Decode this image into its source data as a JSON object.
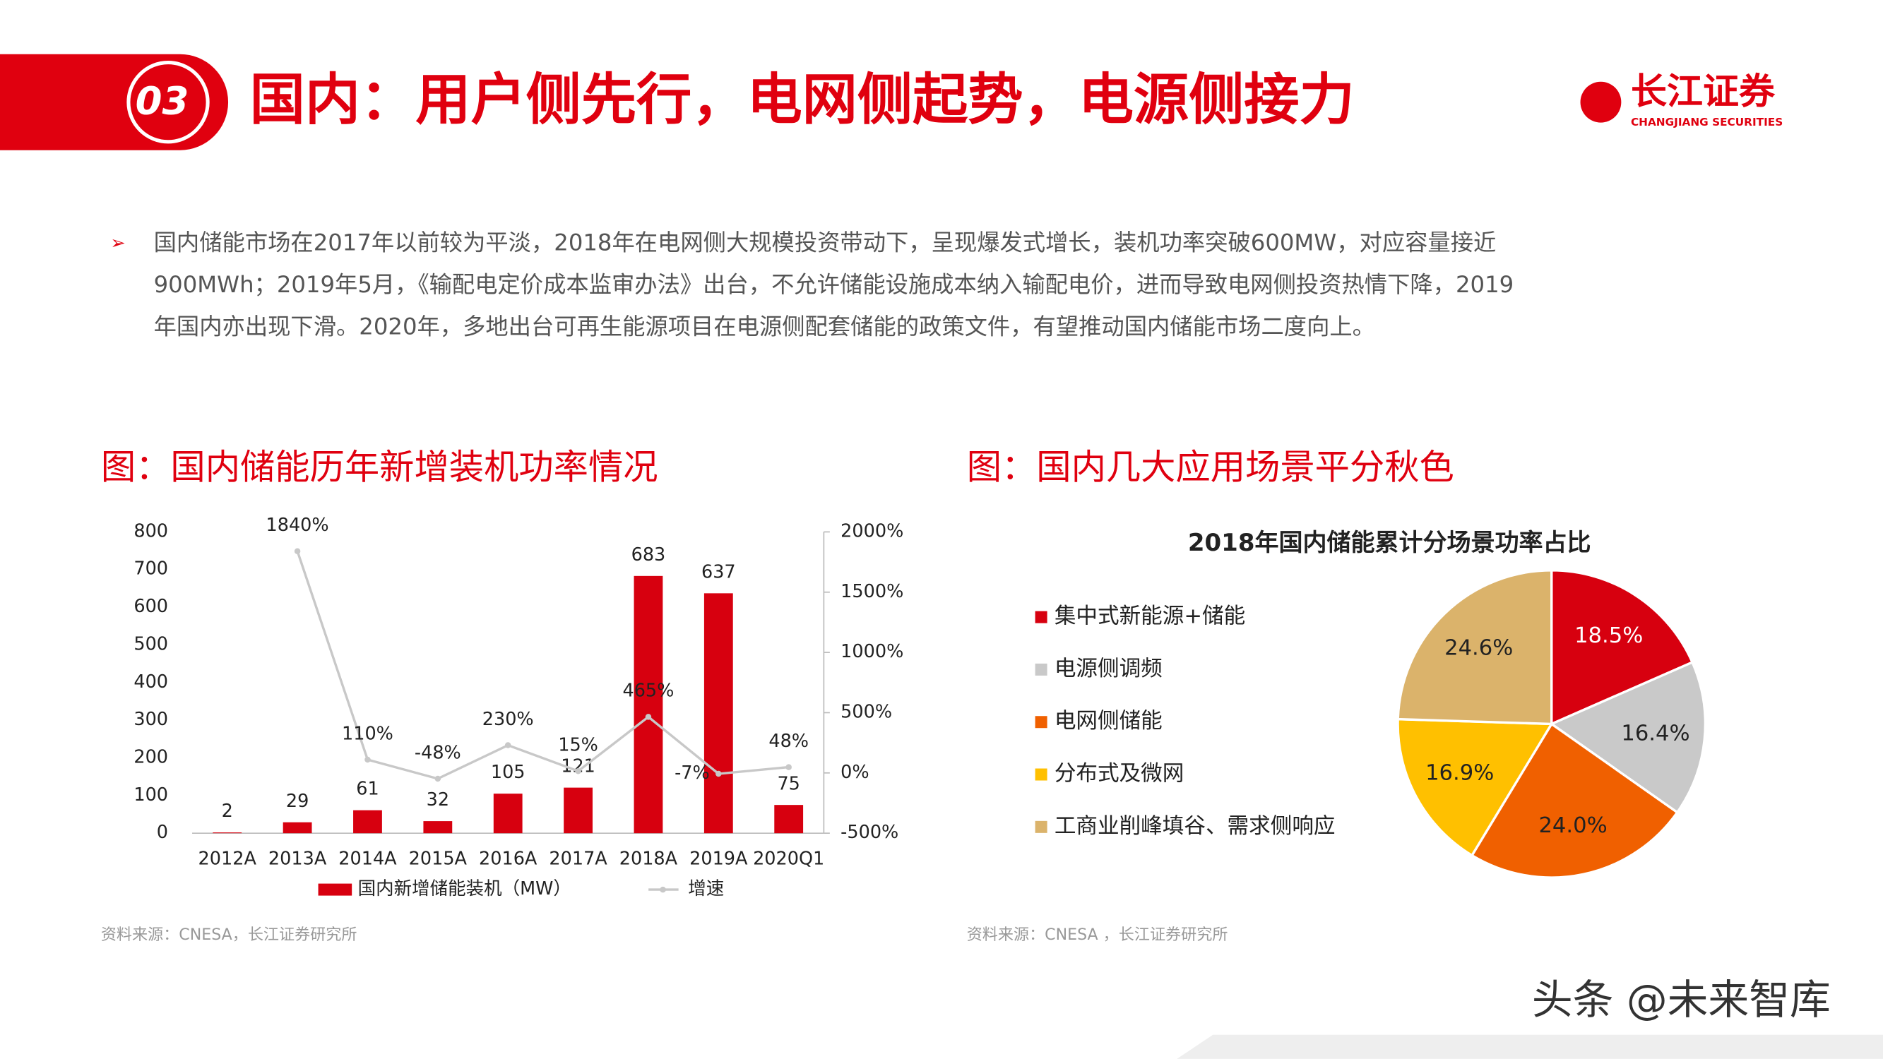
{
  "header": {
    "number": "03",
    "title": "国内：用户侧先行，电网侧起势，电源侧接力",
    "logo": "长江证券",
    "logo_sub": "CHANGJIANG SECURITIES"
  },
  "body": {
    "lines": [
      "国内储能市场在2017年以前较为平淡，2018年在电网侧大规模投资带动下，呈现爆发式增长，装机功率突破600MW，对应容量接近",
      "900MWh；2019年5月，《输配电定价成本监审办法》出台，不允许储能设施成本纳入输配电价，进而导致电网侧投资热情下降，2019",
      "年国内亦出现下滑。2020年，多地出台可再生能源项目在电源侧配套储能的政策文件，有望推动国内储能市场二度向上。"
    ]
  },
  "chart_data": [
    {
      "type": "bar",
      "heading": "图：国内储能历年新增装机功率情况",
      "source": "资料来源：CNESA，长江证券研究所",
      "categories": [
        "2012A",
        "2013A",
        "2014A",
        "2015A",
        "2016A",
        "2017A",
        "2018A",
        "2019A",
        "2020Q1"
      ],
      "series": [
        {
          "name": "国内新增储能装机（MW）",
          "color": "#d7000f",
          "values": [
            2,
            29,
            61,
            32,
            105,
            121,
            683,
            637,
            75
          ]
        },
        {
          "name": "增速",
          "color": "#c8c8c8",
          "axis": "y2",
          "values": [
            null,
            1840,
            110,
            -48,
            230,
            15,
            465,
            -7,
            48
          ],
          "value_labels": [
            null,
            "1840%",
            "110%",
            "-48%",
            "230%",
            "15%",
            "465%",
            "-7%",
            "48%"
          ]
        }
      ],
      "ylim": [
        0,
        800
      ],
      "yticks": [
        0,
        100,
        200,
        300,
        400,
        500,
        600,
        700,
        800
      ],
      "y2lim": [
        -500,
        2000
      ],
      "y2ticks": [
        {
          "value": -500,
          "label": "-500%"
        },
        {
          "value": 0,
          "label": "0%"
        },
        {
          "value": 500,
          "label": "500%"
        },
        {
          "value": 1000,
          "label": "1000%"
        },
        {
          "value": 1500,
          "label": "1500%"
        },
        {
          "value": 2000,
          "label": "2000%"
        }
      ],
      "legend": "bottom",
      "grid": false
    },
    {
      "type": "pie",
      "heading": "图：国内几大应用场景平分秋色",
      "source": "资料来源：CNESA ，长江证券研究所",
      "title": "2018年国内储能累计分场景功率占比",
      "categories": [
        "集中式新能源+储能",
        "电源侧调频",
        "电网侧储能",
        "分布式及微网",
        "工商业削峰填谷、需求侧响应"
      ],
      "values": [
        18.5,
        16.4,
        24.0,
        16.9,
        24.6
      ],
      "value_labels": [
        "18.5%",
        "16.4%",
        "24.0%",
        "16.9%",
        "24.6%"
      ],
      "colors": [
        "#d7000f",
        "#c9c9c9",
        "#f06000",
        "#ffc000",
        "#dbb36b"
      ],
      "legend": "left"
    }
  ],
  "watermark": "头条 @未来智库"
}
